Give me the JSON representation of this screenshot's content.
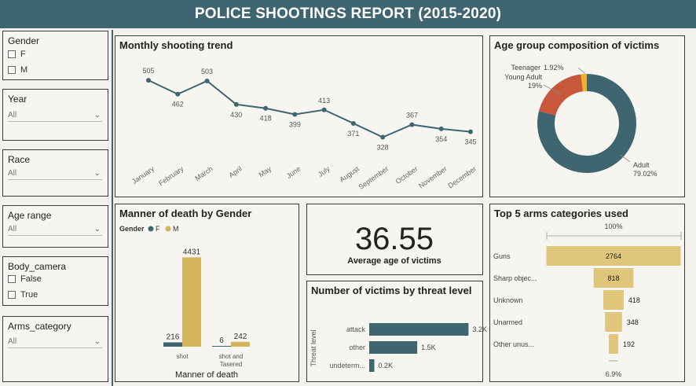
{
  "header": {
    "title": "POLICE SHOOTINGS REPORT (2015-2020)"
  },
  "filters": {
    "gender": {
      "title": "Gender",
      "options": [
        "F",
        "M"
      ]
    },
    "year": {
      "title": "Year",
      "value": "All"
    },
    "race": {
      "title": "Race",
      "value": "All"
    },
    "age_range": {
      "title": "Age range",
      "value": "All"
    },
    "body_camera": {
      "title": "Body_camera",
      "options": [
        "False",
        "True"
      ]
    },
    "arms_category": {
      "title": "Arms_category",
      "value": "All"
    }
  },
  "kpi": {
    "value": "36.55",
    "label": "Average age of victims"
  },
  "colors": {
    "header": "#3f6670",
    "teal": "#3f6670",
    "gold": "#d4b45a",
    "red": "#c8583c",
    "orange": "#f0b030",
    "funnel": "#e0c67a"
  },
  "chart_data": [
    {
      "id": "monthly",
      "type": "line",
      "title": "Monthly shooting trend",
      "categories": [
        "January",
        "February",
        "March",
        "April",
        "May",
        "June",
        "July",
        "August",
        "September",
        "October",
        "November",
        "December"
      ],
      "values": [
        505,
        462,
        503,
        430,
        418,
        399,
        413,
        371,
        328,
        367,
        354,
        345
      ],
      "ylim": [
        300,
        520
      ]
    },
    {
      "id": "age_group",
      "type": "pie",
      "title": "Age group composition of victims",
      "slices": [
        {
          "label": "Adult",
          "pct_label": "79.02%",
          "value": 79.02
        },
        {
          "label": "Young Adult",
          "pct_label": "19%",
          "value": 19.06
        },
        {
          "label": "Teenager",
          "pct_label": "1.92%",
          "value": 1.92
        }
      ]
    },
    {
      "id": "manner",
      "type": "bar",
      "title": "Manner of death by Gender",
      "legend_title": "Gender",
      "legend": [
        "F",
        "M"
      ],
      "xlabel": "Manner of death",
      "categories": [
        "shot",
        "shot and Tasered"
      ],
      "series": [
        {
          "name": "F",
          "values": [
            216,
            6
          ]
        },
        {
          "name": "M",
          "values": [
            4431,
            242
          ]
        }
      ],
      "ylim": [
        0,
        4600
      ]
    },
    {
      "id": "threat",
      "type": "bar",
      "orientation": "horizontal",
      "title": "Number of victims by threat level",
      "ylabel": "Threat level",
      "categories": [
        "attack",
        "other",
        "undeterm..."
      ],
      "values": [
        3160,
        1528,
        163
      ],
      "value_labels": [
        "3.2K",
        "1.5K",
        "0.2K"
      ],
      "xlim": [
        0,
        3500
      ]
    },
    {
      "id": "arms",
      "type": "bar",
      "variant": "funnel",
      "title": "Top 5 arms categories used",
      "top_label": "100%",
      "bottom_label": "6.9%",
      "categories": [
        "Guns",
        "Sharp objec...",
        "Unknown",
        "Unarmed",
        "Other unus..."
      ],
      "values": [
        2764,
        818,
        418,
        348,
        192
      ]
    }
  ]
}
